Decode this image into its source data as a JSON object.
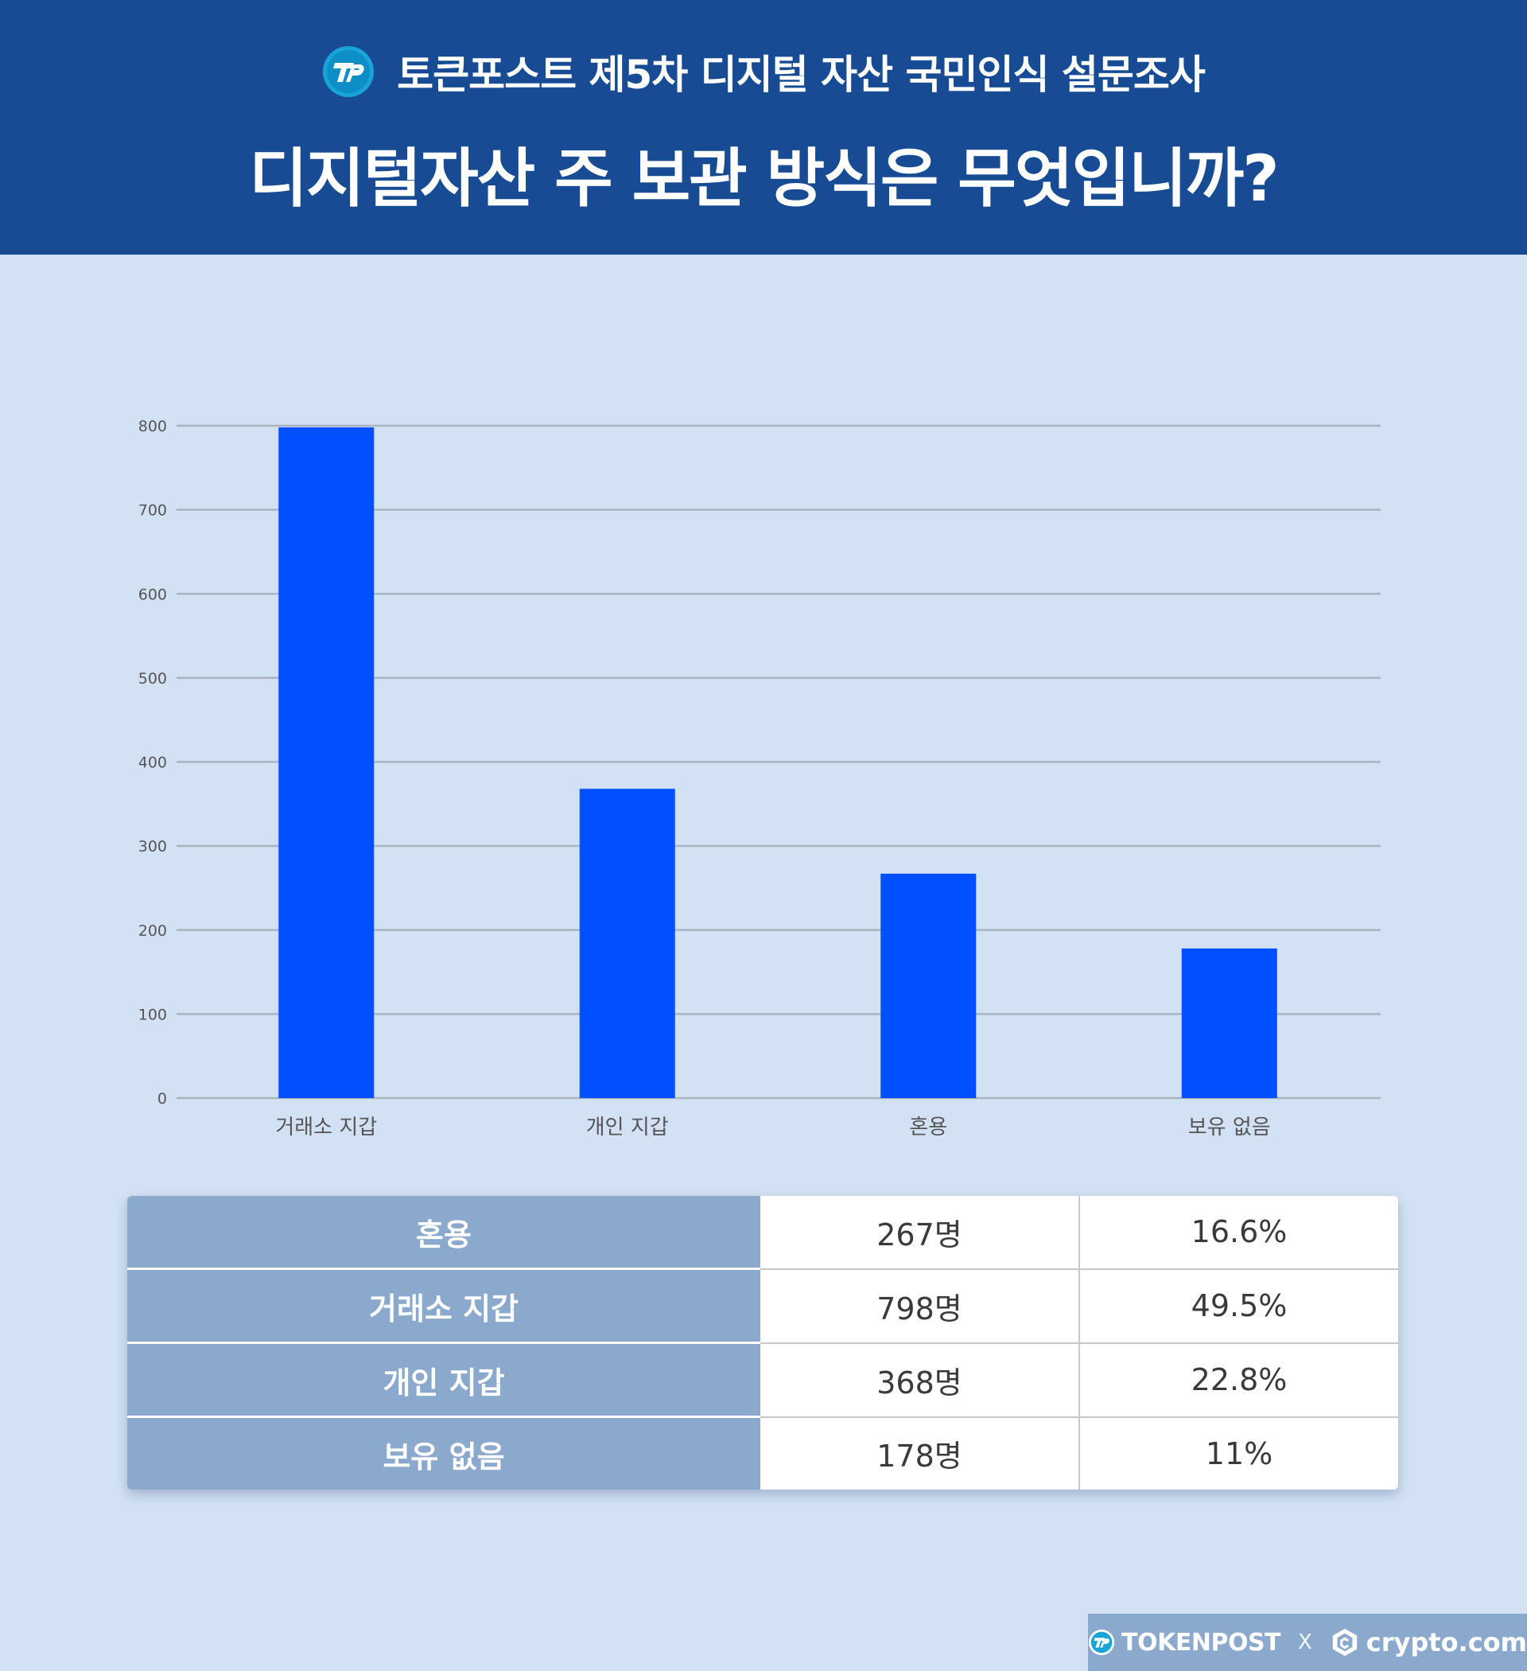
{
  "header": {
    "survey_title": "토큰포스트 제5차 디지털 자산 국민인식 설문조사",
    "question": "디지털자산 주 보관 방식은 무엇입니까?",
    "background_color": "#174c94"
  },
  "chart_data": {
    "type": "bar",
    "categories": [
      "거래소 지갑",
      "개인 지갑",
      "혼용",
      "보유 없음"
    ],
    "values": [
      798,
      368,
      267,
      178
    ],
    "ylim": [
      0,
      800
    ],
    "yticks": [
      0,
      100,
      200,
      300,
      400,
      500,
      600,
      700,
      800
    ],
    "bar_color": "#0050ff",
    "grid": true
  },
  "table": {
    "rows": [
      {
        "label": "혼용",
        "count": "267명",
        "percent": "16.6%"
      },
      {
        "label": "거래소 지갑",
        "count": "798명",
        "percent": "49.5%"
      },
      {
        "label": "개인 지갑",
        "count": "368명",
        "percent": "22.8%"
      },
      {
        "label": "보유 없음",
        "count": "178명",
        "percent": "11%"
      }
    ]
  },
  "footer": {
    "tokenpost": "TOKENPOST",
    "separator": "X",
    "crypto": "crypto.com",
    "tokenpost_icon": "tokenpost-logo-icon",
    "crypto_icon": "crypto-com-logo-icon"
  }
}
